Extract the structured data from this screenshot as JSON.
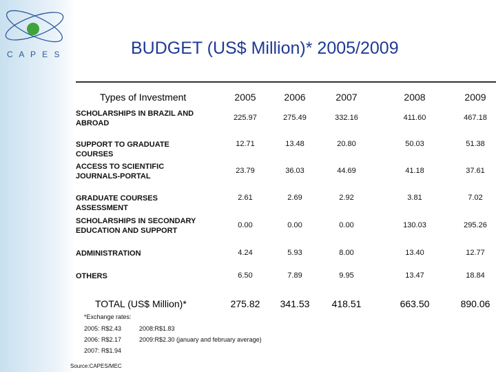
{
  "header": {
    "logo_text": "C A P E S",
    "title": "BUDGET (US$ Million)* 2005/2009"
  },
  "table": {
    "columns": [
      "Types of Investment",
      "2005",
      "2006",
      "2007",
      "2008",
      "2009"
    ],
    "rows": [
      [
        "SCHOLARSHIPS IN BRAZIL AND ABROAD",
        "225.97",
        "275.49",
        "332.16",
        "411.60",
        "467.18"
      ],
      [
        "SUPPORT TO GRADUATE COURSES",
        "12.71",
        "13.48",
        "20.80",
        "50.03",
        "51.38"
      ],
      [
        "ACCESS TO SCIENTIFIC JOURNALS-PORTAL",
        "23.79",
        "36.03",
        "44.69",
        "41.18",
        "37.61"
      ],
      [
        "GRADUATE COURSES ASSESSMENT",
        "2.61",
        "2.69",
        "2.92",
        "3.81",
        "7.02"
      ],
      [
        "SCHOLARSHIPS IN SECONDARY EDUCATION AND SUPPORT",
        "0.00",
        "0.00",
        "0.00",
        "130.03",
        "295.26"
      ],
      [
        "ADMINISTRATION",
        "4.24",
        "5.93",
        "8.00",
        "13.40",
        "12.77"
      ],
      [
        "OTHERS",
        "6.50",
        "7.89",
        "9.95",
        "13.47",
        "18.84"
      ]
    ],
    "total": [
      "TOTAL  (US$ Million)*",
      "275.82",
      "341.53",
      "418.51",
      "663.50",
      "890.06"
    ]
  },
  "notes": {
    "heading": "*Exchange rates:",
    "rates": [
      "2005: R$2.43",
      "2008:R$1.83",
      "2006: R$2.17",
      "2009:R$2.30 (january and february average)",
      "2007: R$1.94"
    ],
    "source": "Source:CAPES/MEC"
  }
}
